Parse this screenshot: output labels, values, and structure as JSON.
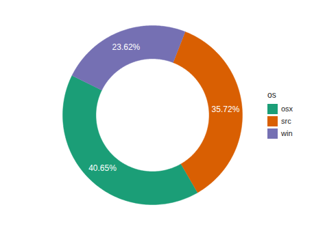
{
  "chart_data": {
    "type": "donut",
    "categories": [
      "osx",
      "src",
      "win"
    ],
    "values": [
      40.65,
      35.72,
      23.62
    ],
    "value_labels": [
      "40.65%",
      "35.72%",
      "23.62%"
    ],
    "colors": [
      "#1b9e77",
      "#d95f02",
      "#7570b3"
    ],
    "data_labels": true,
    "legend": "right",
    "legend_title": "os"
  }
}
